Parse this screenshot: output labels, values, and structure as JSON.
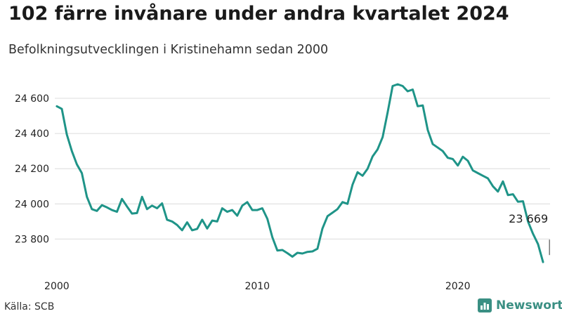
{
  "title": "102 färre invånare under andra kvartalet 2024",
  "subtitle": "Befolkningsutvecklingen i Kristinehamn sedan 2000",
  "source": "Källa: SCB",
  "brand": {
    "name": "Newsworthy",
    "color": "#3a8f83"
  },
  "chart_data": {
    "type": "line",
    "title": "102 färre invånare under andra kvartalet 2024",
    "subtitle": "Befolkningsutvecklingen i Kristinehamn sedan 2000",
    "xlabel": "",
    "ylabel": "",
    "xlim": [
      1999.9,
      2024.6
    ],
    "ylim": [
      23650,
      24700
    ],
    "y_ticks": [
      23800,
      24000,
      24200,
      24400,
      24600
    ],
    "y_tick_labels": [
      "23 800",
      "24 000",
      "24 200",
      "24 400",
      "24 600"
    ],
    "x_ticks": [
      2000,
      2010,
      2020
    ],
    "x_tick_labels": [
      "2000",
      "2010",
      "2020"
    ],
    "grid": "horizontal",
    "line_color": "#1f9488",
    "annotation": {
      "text": "23 669",
      "x": 2024.5,
      "y": 23669
    },
    "series": [
      {
        "start_year": 2000,
        "step": "quarter",
        "values": [
          24555,
          24540,
          24395,
          24300,
          24225,
          24175,
          24040,
          23970,
          23960,
          23993,
          23980,
          23965,
          23955,
          24028,
          23985,
          23945,
          23948,
          24040,
          23970,
          23990,
          23975,
          24003,
          23910,
          23900,
          23880,
          23850,
          23895,
          23850,
          23858,
          23910,
          23860,
          23905,
          23900,
          23975,
          23955,
          23965,
          23933,
          23990,
          24010,
          23965,
          23965,
          23975,
          23915,
          23810,
          23735,
          23738,
          23720,
          23700,
          23722,
          23718,
          23727,
          23730,
          23745,
          23860,
          23930,
          23950,
          23970,
          24010,
          24000,
          24110,
          24180,
          24160,
          24200,
          24270,
          24310,
          24380,
          24520,
          24670,
          24680,
          24670,
          24640,
          24650,
          24555,
          24560,
          24420,
          24340,
          24320,
          24300,
          24262,
          24255,
          24218,
          24268,
          24245,
          24190,
          24175,
          24160,
          24145,
          24100,
          24070,
          24128,
          24050,
          24055,
          24012,
          24015,
          23900,
          23830,
          23771,
          23669
        ]
      }
    ]
  }
}
